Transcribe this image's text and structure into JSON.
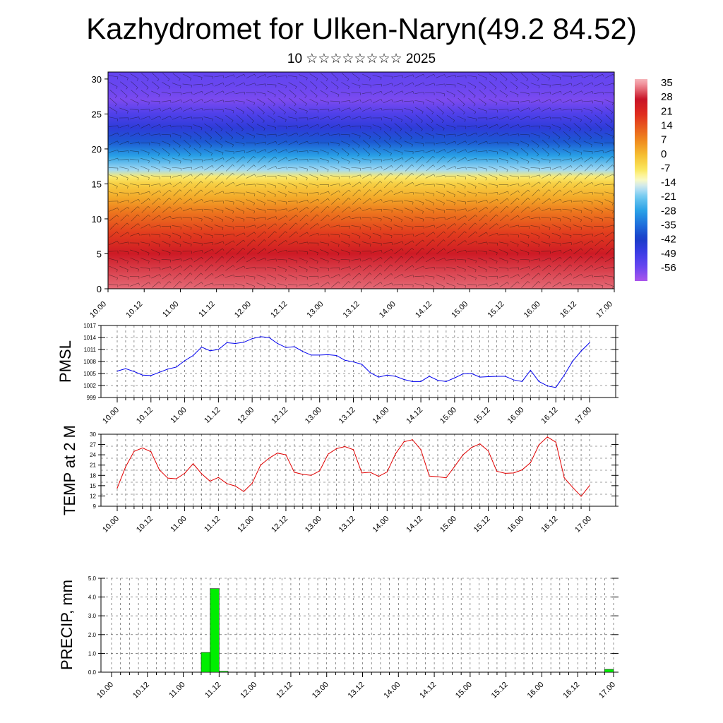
{
  "title": "Kazhydromet for Ulken-Naryn(49.2 84.52)",
  "subtitle": "10 ☆☆☆☆☆☆☆☆ 2025",
  "time_ticks": [
    "10.00",
    "10.12",
    "11.00",
    "11.12",
    "12.00",
    "12.12",
    "13.00",
    "13.12",
    "14.00",
    "14.12",
    "15.00",
    "15.12",
    "16.00",
    "16.12",
    "17.00"
  ],
  "colors": {
    "pmsl_line": "#0000ee",
    "temp_line": "#e00000",
    "precip_bar": "#00ee00"
  },
  "chart_data": [
    {
      "type": "heatmap",
      "name": "vertical-profile",
      "yticks": [
        "0",
        "5",
        "10",
        "15",
        "20",
        "25",
        "30"
      ],
      "ylim": [
        0,
        31
      ],
      "colorbar": {
        "labels": [
          "35",
          "28",
          "21",
          "14",
          "7",
          "0",
          "-7",
          "-14",
          "-21",
          "-28",
          "-35",
          "-42",
          "-49",
          "-56"
        ],
        "range": [
          -63,
          38
        ]
      },
      "profile_levels": [
        0,
        5,
        8,
        11,
        13,
        15,
        16,
        17,
        19,
        21,
        23,
        25,
        27,
        29,
        31
      ],
      "profile_values": [
        33,
        26,
        18,
        10,
        3,
        -3,
        -8,
        -18,
        -28,
        -38,
        -46,
        -52,
        -58,
        -56,
        -55
      ],
      "overlay": "wind barbs"
    },
    {
      "type": "line",
      "name": "pmsl",
      "ylabel": "PMSL",
      "ylim": [
        999,
        1017
      ],
      "yticks": [
        "1017",
        "1014",
        "1011",
        "1008",
        "1005",
        "1002",
        "999"
      ],
      "x": [
        0,
        1,
        2,
        3,
        4,
        5,
        6,
        7,
        8,
        9,
        10,
        11,
        12,
        13,
        14,
        15,
        16,
        17,
        18,
        19,
        20,
        21,
        22,
        23,
        24,
        25,
        26,
        27,
        28,
        29,
        30,
        31,
        32,
        33,
        34,
        35,
        36,
        37,
        38,
        39,
        40,
        41,
        42,
        43,
        44,
        45,
        46,
        47,
        48,
        49,
        50,
        51,
        52,
        53,
        54,
        55,
        56
      ],
      "series": [
        {
          "values": [
            1005.6,
            1006.2,
            1005.5,
            1004.6,
            1004.5,
            1005.3,
            1006.1,
            1006.6,
            1008.2,
            1009.5,
            1011.6,
            1010.7,
            1011.0,
            1012.7,
            1012.5,
            1012.8,
            1013.7,
            1014.2,
            1014.0,
            1012.5,
            1011.5,
            1011.7,
            1010.5,
            1009.6,
            1009.6,
            1009.7,
            1009.5,
            1008.3,
            1007.9,
            1007.3,
            1005.2,
            1004.1,
            1004.6,
            1004.3,
            1003.5,
            1003.0,
            1003.0,
            1004.3,
            1003.3,
            1003.0,
            1003.9,
            1004.9,
            1005.0,
            1004.1,
            1004.2,
            1004.3,
            1004.3,
            1003.4,
            1003.0,
            1005.8,
            1003.0,
            1001.9,
            1001.5,
            1004.6,
            1008.1,
            1010.6,
            1012.7
          ]
        }
      ]
    },
    {
      "type": "line",
      "name": "temp-2m",
      "ylabel": "TEMP at 2 M",
      "ylim": [
        9,
        30
      ],
      "yticks": [
        "30",
        "27",
        "24",
        "21",
        "18",
        "15",
        "12",
        "9"
      ],
      "x": [
        0,
        1,
        2,
        3,
        4,
        5,
        6,
        7,
        8,
        9,
        10,
        11,
        12,
        13,
        14,
        15,
        16,
        17,
        18,
        19,
        20,
        21,
        22,
        23,
        24,
        25,
        26,
        27,
        28,
        29,
        30,
        31,
        32,
        33,
        34,
        35,
        36,
        37,
        38,
        39,
        40,
        41,
        42,
        43,
        44,
        45,
        46,
        47,
        48,
        49,
        50,
        51,
        52,
        53,
        54,
        55,
        56
      ],
      "series": [
        {
          "values": [
            14.3,
            20.5,
            25.0,
            26.0,
            24.9,
            19.6,
            17.2,
            17.0,
            18.6,
            21.4,
            18.5,
            16.3,
            17.4,
            15.6,
            14.9,
            13.3,
            15.7,
            21.0,
            23.0,
            24.5,
            24.0,
            18.9,
            18.3,
            18.0,
            19.3,
            24.2,
            25.8,
            26.4,
            25.5,
            18.7,
            18.9,
            17.7,
            19.0,
            24.3,
            27.8,
            28.4,
            25.5,
            17.8,
            17.6,
            17.3,
            20.6,
            24.0,
            26.1,
            27.2,
            25.1,
            19.2,
            18.6,
            18.7,
            19.6,
            21.7,
            26.9,
            29.2,
            27.7,
            17.3,
            14.5,
            11.9,
            15.0
          ]
        }
      ]
    },
    {
      "type": "bar",
      "name": "precip",
      "ylabel": "PRECIP, mm",
      "ylim": [
        0,
        5
      ],
      "yticks": [
        "5.0",
        "4.0",
        "3.0",
        "2.0",
        "1.0",
        "0.0"
      ],
      "x": [
        10,
        11,
        12,
        55
      ],
      "values": [
        1.05,
        4.45,
        0.05,
        0.15
      ]
    }
  ]
}
